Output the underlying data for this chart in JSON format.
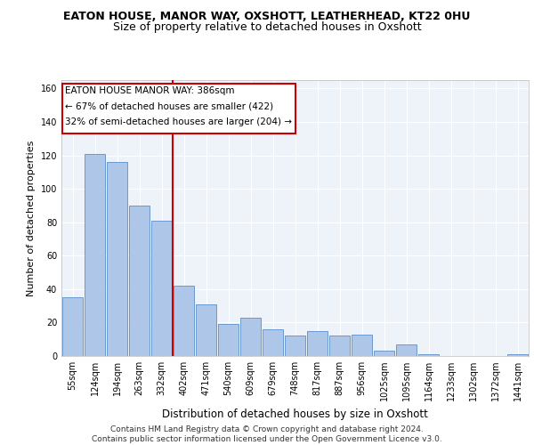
{
  "title": "EATON HOUSE, MANOR WAY, OXSHOTT, LEATHERHEAD, KT22 0HU",
  "subtitle": "Size of property relative to detached houses in Oxshott",
  "xlabel": "Distribution of detached houses by size in Oxshott",
  "ylabel": "Number of detached properties",
  "categories": [
    "55sqm",
    "124sqm",
    "194sqm",
    "263sqm",
    "332sqm",
    "402sqm",
    "471sqm",
    "540sqm",
    "609sqm",
    "679sqm",
    "748sqm",
    "817sqm",
    "887sqm",
    "956sqm",
    "1025sqm",
    "1095sqm",
    "1164sqm",
    "1233sqm",
    "1302sqm",
    "1372sqm",
    "1441sqm"
  ],
  "values": [
    35,
    121,
    116,
    90,
    81,
    42,
    31,
    19,
    23,
    16,
    12,
    15,
    12,
    13,
    3,
    7,
    1,
    0,
    0,
    0,
    1
  ],
  "bar_color": "#aec6e8",
  "bar_edge_color": "#5b8fc9",
  "vline_bar_index": 5,
  "vline_color": "#cc0000",
  "annotation_line1": "EATON HOUSE MANOR WAY: 386sqm",
  "annotation_line2": "← 67% of detached houses are smaller (422)",
  "annotation_line3": "32% of semi-detached houses are larger (204) →",
  "ylim": [
    0,
    165
  ],
  "yticks": [
    0,
    20,
    40,
    60,
    80,
    100,
    120,
    140,
    160
  ],
  "background_color": "#eef2f9",
  "grid_color": "#ffffff",
  "footer_text": "Contains HM Land Registry data © Crown copyright and database right 2024.\nContains public sector information licensed under the Open Government Licence v3.0.",
  "title_fontsize": 9,
  "subtitle_fontsize": 9,
  "xlabel_fontsize": 8.5,
  "ylabel_fontsize": 8,
  "tick_fontsize": 7,
  "annotation_fontsize": 7.5,
  "footer_fontsize": 6.5
}
